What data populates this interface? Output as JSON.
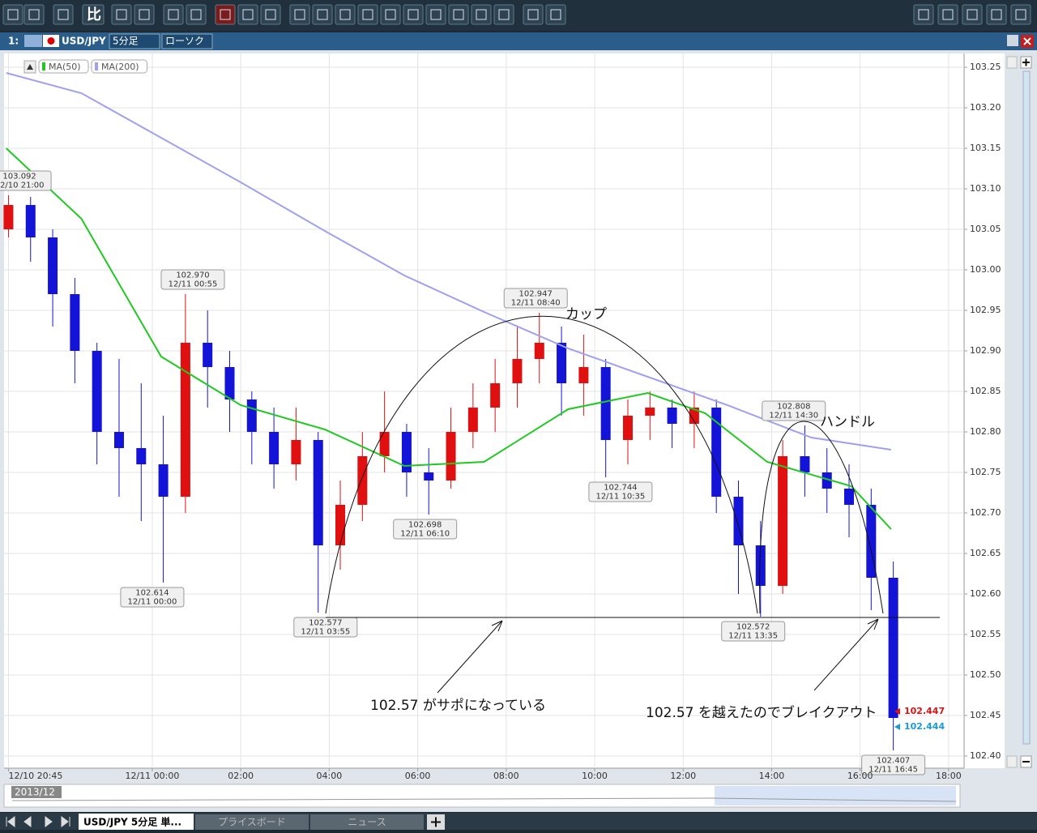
{
  "toolbar_label": "比",
  "window": {
    "index": "1:",
    "symbol": "USD/JPY",
    "timeframe": "5分足",
    "chart_style": "ローソク"
  },
  "chart_data": {
    "type": "candlestick",
    "x": [
      -3.25,
      -2.75,
      -2.25,
      -1.75,
      -1.25,
      -0.75,
      -0.25,
      0.25,
      0.75,
      1.25,
      1.75,
      2.25,
      2.75,
      3.25,
      3.75,
      4.25,
      4.75,
      5.25,
      5.75,
      6.25,
      6.75,
      7.25,
      7.75,
      8.25,
      8.75,
      9.25,
      9.75,
      10.25,
      10.75,
      11.25,
      11.75,
      12.25,
      12.75,
      13.25,
      13.75,
      14.25,
      14.75,
      15.25,
      15.75,
      16.25,
      16.75
    ],
    "open": [
      103.05,
      103.08,
      103.04,
      102.97,
      102.9,
      102.8,
      102.78,
      102.76,
      102.72,
      102.91,
      102.88,
      102.84,
      102.8,
      102.76,
      102.79,
      102.66,
      102.71,
      102.77,
      102.8,
      102.75,
      102.74,
      102.8,
      102.83,
      102.86,
      102.89,
      102.91,
      102.86,
      102.88,
      102.79,
      102.82,
      102.83,
      102.81,
      102.83,
      102.72,
      102.66,
      102.61,
      102.77,
      102.75,
      102.73,
      102.71,
      102.62
    ],
    "high": [
      103.092,
      103.09,
      103.05,
      102.99,
      102.91,
      102.89,
      102.86,
      102.82,
      102.97,
      102.95,
      102.9,
      102.85,
      102.83,
      102.83,
      102.8,
      102.74,
      102.8,
      102.85,
      102.81,
      102.78,
      102.83,
      102.86,
      102.89,
      102.93,
      102.947,
      102.93,
      102.92,
      102.89,
      102.84,
      102.85,
      102.84,
      102.85,
      102.84,
      102.74,
      102.69,
      102.79,
      102.808,
      102.78,
      102.76,
      102.73,
      102.64
    ],
    "low": [
      103.04,
      103.01,
      102.93,
      102.86,
      102.76,
      102.72,
      102.69,
      102.614,
      102.7,
      102.83,
      102.8,
      102.76,
      102.73,
      102.74,
      102.577,
      102.63,
      102.69,
      102.75,
      102.72,
      102.698,
      102.73,
      102.78,
      102.8,
      102.83,
      102.86,
      102.82,
      102.82,
      102.744,
      102.76,
      102.79,
      102.78,
      102.78,
      102.7,
      102.6,
      102.572,
      102.6,
      102.72,
      102.7,
      102.67,
      102.58,
      102.407
    ],
    "close": [
      103.08,
      103.04,
      102.97,
      102.9,
      102.8,
      102.78,
      102.76,
      102.72,
      102.91,
      102.88,
      102.84,
      102.8,
      102.76,
      102.79,
      102.66,
      102.71,
      102.77,
      102.8,
      102.75,
      102.74,
      102.8,
      102.83,
      102.86,
      102.89,
      102.91,
      102.86,
      102.88,
      102.79,
      102.82,
      102.83,
      102.81,
      102.83,
      102.72,
      102.66,
      102.61,
      102.77,
      102.75,
      102.73,
      102.71,
      102.62,
      102.447
    ],
    "up_color": "#e01010",
    "down_color": "#1414d8",
    "indicators": [
      {
        "name": "MA(50)",
        "color": "#22c822",
        "x": [
          -3.3,
          -1.6,
          0.2,
          2.0,
          3.9,
          5.7,
          7.5,
          9.4,
          11.2,
          12.5,
          13.9,
          15.8,
          16.7
        ],
        "values": [
          103.15,
          103.063,
          102.893,
          102.833,
          102.803,
          102.758,
          102.763,
          102.828,
          102.848,
          102.823,
          102.763,
          102.733,
          102.68
        ]
      },
      {
        "name": "MA(200)",
        "color": "#a0a0f0",
        "x": [
          -3.3,
          -1.6,
          0.2,
          2.0,
          3.9,
          5.7,
          7.5,
          9.4,
          11.2,
          13.0,
          14.9,
          16.7
        ],
        "values": [
          103.243,
          103.218,
          103.163,
          103.108,
          103.048,
          102.993,
          102.948,
          102.903,
          102.868,
          102.833,
          102.793,
          102.778
        ]
      }
    ],
    "annotations": [
      {
        "value": 103.092,
        "time": "12/10 21:00"
      },
      {
        "value": 102.97,
        "label": "102.970",
        "time": "12/11 00:55"
      },
      {
        "value": 102.614,
        "time": "12/11 00:00"
      },
      {
        "value": 102.577,
        "time": "12/11 03:55"
      },
      {
        "value": 102.698,
        "time": "12/11 06:10"
      },
      {
        "value": 102.947,
        "time": "12/11 08:40"
      },
      {
        "value": 102.744,
        "time": "12/11 10:35"
      },
      {
        "value": 102.808,
        "time": "12/11 14:30"
      },
      {
        "value": 102.572,
        "time": "12/11 13:35"
      },
      {
        "value": 102.407,
        "time": "12/11 16:45"
      }
    ],
    "price_tags": [
      {
        "value": 102.447,
        "color": "#e01010"
      },
      {
        "value": 102.444,
        "color": "#1a9ad6"
      }
    ],
    "notes": {
      "cup": "カップ",
      "handle": "ハンドル",
      "support": "102.57 がサポになっている",
      "breakout": "102.57 を越えたのでブレイクアウト"
    },
    "xlim": [
      -3.35,
      18.35
    ],
    "ylim": [
      102.385,
      103.267
    ],
    "xticks": [
      {
        "value": -3.25,
        "label": "12/10 20:45"
      },
      {
        "value": 0,
        "label": "12/11 00:00"
      },
      {
        "value": 2,
        "label": "02:00"
      },
      {
        "value": 4,
        "label": "04:00"
      },
      {
        "value": 6,
        "label": "06:00"
      },
      {
        "value": 8,
        "label": "08:00"
      },
      {
        "value": 10,
        "label": "10:00"
      },
      {
        "value": 12,
        "label": "12:00"
      },
      {
        "value": 14,
        "label": "14:00"
      },
      {
        "value": 16,
        "label": "16:00"
      },
      {
        "value": 18,
        "label": "18:00"
      }
    ],
    "yticks": [
      {
        "value": 102.4,
        "label": "102.40"
      },
      {
        "value": 102.45,
        "label": "102.45"
      },
      {
        "value": 102.5,
        "label": "102.50"
      },
      {
        "value": 102.55,
        "label": "102.55"
      },
      {
        "value": 102.6,
        "label": "102.60"
      },
      {
        "value": 102.65,
        "label": "102.65"
      },
      {
        "value": 102.7,
        "label": "102.70"
      },
      {
        "value": 102.75,
        "label": "102.75"
      },
      {
        "value": 102.8,
        "label": "102.80"
      },
      {
        "value": 102.85,
        "label": "102.85"
      },
      {
        "value": 102.9,
        "label": "102.90"
      },
      {
        "value": 102.95,
        "label": "102.95"
      },
      {
        "value": 103.0,
        "label": "103.00"
      },
      {
        "value": 103.05,
        "label": "103.05"
      },
      {
        "value": 103.1,
        "label": "103.10"
      },
      {
        "value": 103.15,
        "label": "103.15"
      },
      {
        "value": 103.2,
        "label": "103.20"
      },
      {
        "value": 103.25,
        "label": "103.25"
      }
    ],
    "grid": true
  },
  "navigator": {
    "label": "2013/12"
  },
  "tabs": [
    "USD/JPY 5分足 単...",
    "プライスボード",
    "ニュース"
  ]
}
